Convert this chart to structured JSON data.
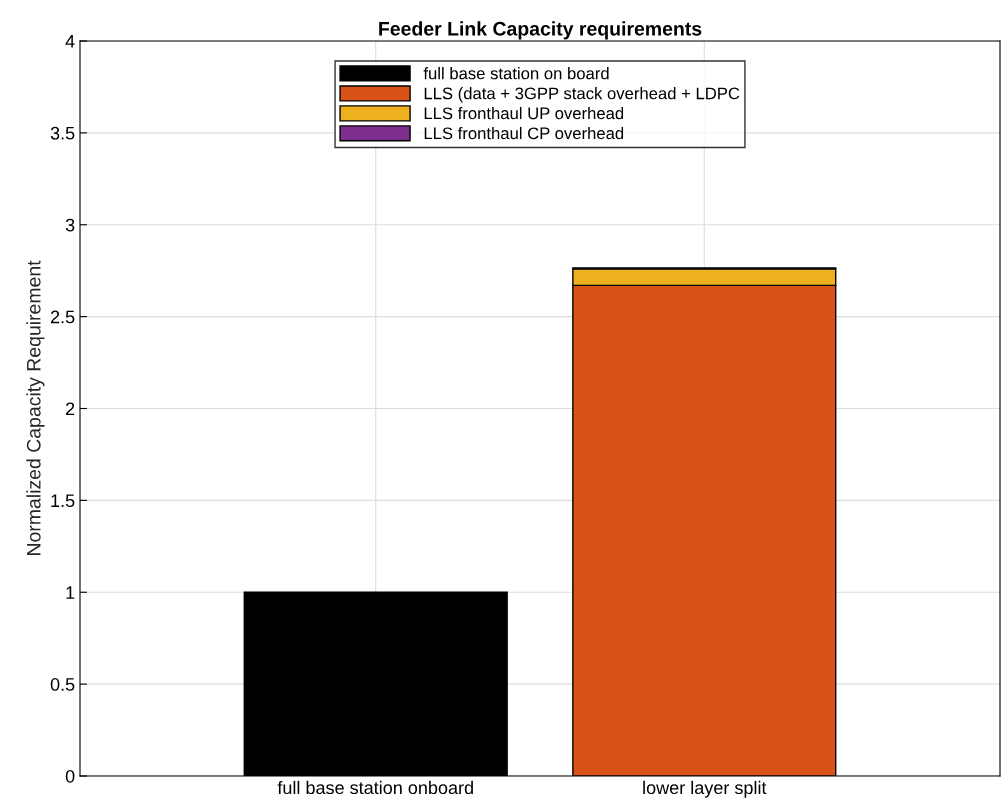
{
  "chart_data": {
    "type": "bar",
    "title": "Feeder Link Capacity requirements",
    "ylabel": "Normalized Capacity Requirement",
    "categories": [
      "full base station onboard",
      "lower layer split"
    ],
    "stacked": true,
    "series": [
      {
        "name": "full base station on board",
        "color": "#000000",
        "values": [
          1,
          null
        ]
      },
      {
        "name": "LLS (data + 3GPP stack overhead + LDPC",
        "color": "#d95319",
        "values": [
          null,
          2.67
        ]
      },
      {
        "name": "LLS fronthaul UP overhead",
        "color": "#edb120",
        "values": [
          null,
          0.09
        ]
      },
      {
        "name": "LLS fronthaul CP overhead",
        "color": "#7e2f8e",
        "values": [
          null,
          0.005
        ]
      }
    ],
    "ylim": [
      0,
      4
    ],
    "yticks": [
      0,
      0.5,
      1,
      1.5,
      2,
      2.5,
      3,
      3.5,
      4
    ],
    "grid": true,
    "legend": "top"
  }
}
